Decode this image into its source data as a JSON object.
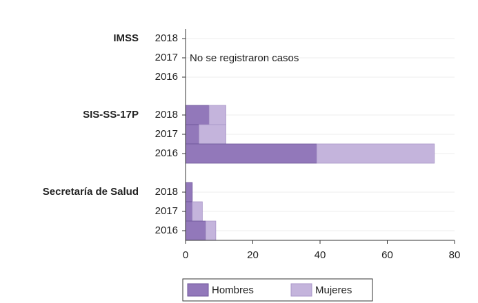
{
  "chart_data": {
    "type": "grouped-hbar-stacked",
    "groups": [
      {
        "name": "IMSS",
        "categories": [
          "2018",
          "2017",
          "2016"
        ]
      },
      {
        "name": "SIS-SS-17P",
        "categories": [
          "2018",
          "2017",
          "2016"
        ]
      },
      {
        "name": "Secretaría de Salud",
        "categories": [
          "2018",
          "2017",
          "2016"
        ]
      }
    ],
    "series": [
      {
        "name": "Hombres",
        "color": "#9278ba",
        "values": [
          [
            null,
            null,
            null
          ],
          [
            7,
            4,
            39
          ],
          [
            2,
            2,
            6
          ]
        ]
      },
      {
        "name": "Mujeres",
        "color": "#c4b4dc",
        "values": [
          [
            null,
            null,
            null
          ],
          [
            5,
            8,
            35
          ],
          [
            0,
            3,
            3
          ]
        ]
      }
    ],
    "annotation": "No se registraron casos",
    "xlim": [
      0,
      80
    ],
    "xticks": [
      0,
      20,
      40,
      60,
      80
    ],
    "grid": true
  }
}
